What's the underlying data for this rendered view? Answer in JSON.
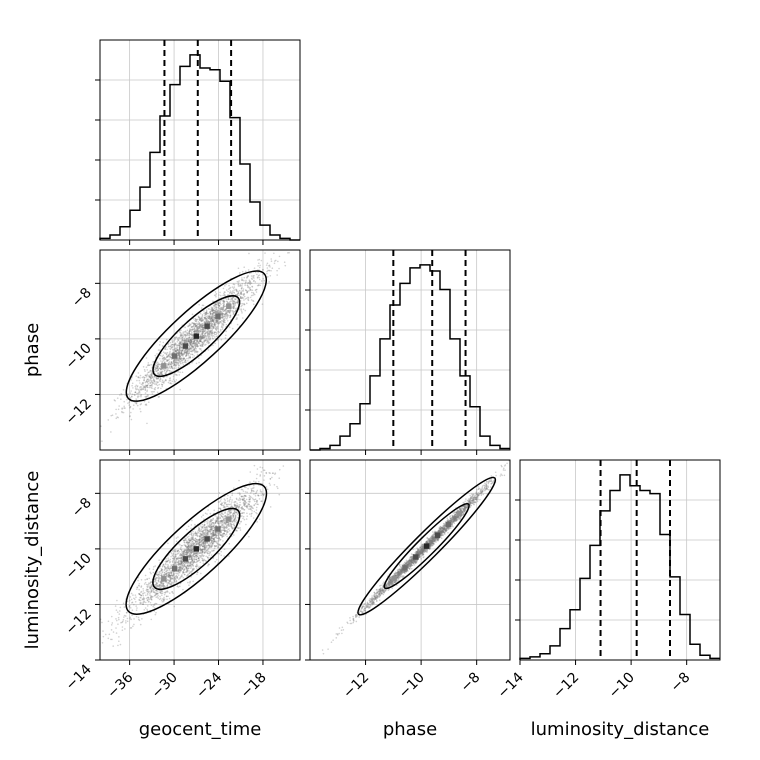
{
  "chart_data": {
    "type": "corner",
    "parameters": [
      "geocent_time",
      "phase",
      "luminosity_distance"
    ],
    "labels": {
      "xlabel_0": "geocent_time",
      "xlabel_1": "phase",
      "xlabel_2": "luminosity_distance",
      "ylabel_1": "phase",
      "ylabel_2": "luminosity_distance"
    },
    "ranges": {
      "geocent_time": [
        -40,
        -13
      ],
      "phase": [
        -14,
        -6.8
      ],
      "luminosity_distance": [
        -14,
        -6.8
      ]
    },
    "ticks": {
      "geocent_time": [
        -36,
        -30,
        -24,
        -18
      ],
      "phase": [
        -12,
        -10,
        -8
      ],
      "luminosity_distance_x": [
        -14,
        -12,
        -10,
        -8
      ],
      "luminosity_distance_y": [
        -14,
        -12,
        -10,
        -8
      ]
    },
    "tick_labels": {
      "geocent_time": [
        "−36",
        "−30",
        "−24",
        "−18"
      ],
      "phase": [
        "−12",
        "−10",
        "−8"
      ],
      "luminosity_distance_x": [
        "−14",
        "−12",
        "−10",
        "−8"
      ],
      "luminosity_distance_y": [
        "−14",
        "−12",
        "−10",
        "−8"
      ]
    },
    "histograms": [
      {
        "parameter": "geocent_time",
        "bin_edges": [
          -40,
          -38.65,
          -37.3,
          -35.95,
          -34.6,
          -33.25,
          -31.9,
          -30.55,
          -29.2,
          -27.85,
          -26.5,
          -25.15,
          -23.8,
          -22.45,
          -21.1,
          -19.75,
          -18.4,
          -17.05,
          -15.7,
          -14.35,
          -13
        ],
        "counts": [
          1,
          3,
          8,
          18,
          32,
          53,
          75,
          94,
          105,
          112,
          104,
          103,
          96,
          74,
          46,
          23,
          9,
          3,
          1,
          0
        ],
        "quantiles": [
          -31.3,
          -26.8,
          -22.3
        ]
      },
      {
        "parameter": "phase",
        "bin_edges": [
          -14,
          -13.64,
          -13.28,
          -12.92,
          -12.56,
          -12.2,
          -11.84,
          -11.48,
          -11.12,
          -10.76,
          -10.4,
          -10.04,
          -9.68,
          -9.32,
          -8.96,
          -8.6,
          -8.24,
          -7.88,
          -7.52,
          -7.16,
          -6.8
        ],
        "counts": [
          0,
          1,
          3,
          9,
          17,
          30,
          48,
          72,
          94,
          108,
          118,
          120,
          116,
          104,
          72,
          48,
          28,
          9,
          3,
          1
        ],
        "quantiles": [
          -11.0,
          -9.6,
          -8.4
        ]
      },
      {
        "parameter": "luminosity_distance",
        "bin_edges": [
          -14,
          -13.64,
          -13.28,
          -12.92,
          -12.56,
          -12.2,
          -11.84,
          -11.48,
          -11.12,
          -10.76,
          -10.4,
          -10.04,
          -9.68,
          -9.32,
          -8.96,
          -8.6,
          -8.24,
          -7.88,
          -7.52,
          -7.16,
          -6.8
        ],
        "counts": [
          1,
          2,
          4,
          9,
          20,
          32,
          52,
          73,
          95,
          108,
          118,
          111,
          108,
          106,
          80,
          53,
          29,
          10,
          3,
          1
        ],
        "quantiles": [
          -11.1,
          -9.8,
          -8.6
        ]
      }
    ],
    "scatter_panels": [
      {
        "x": "geocent_time",
        "y": "phase",
        "slope": 0.245,
        "center": [
          -27,
          -9.9
        ],
        "x_sd": 4.3,
        "resid_sd": 0.36
      },
      {
        "x": "geocent_time",
        "y": "luminosity_distance",
        "slope": 0.245,
        "center": [
          -27,
          -10.0
        ],
        "x_sd": 4.3,
        "resid_sd": 0.38
      },
      {
        "x": "phase",
        "y": "luminosity_distance",
        "slope": 1.0,
        "center": [
          -9.8,
          -9.9
        ],
        "x_sd": 1.15,
        "resid_sd": 0.1
      }
    ],
    "grid": true
  }
}
